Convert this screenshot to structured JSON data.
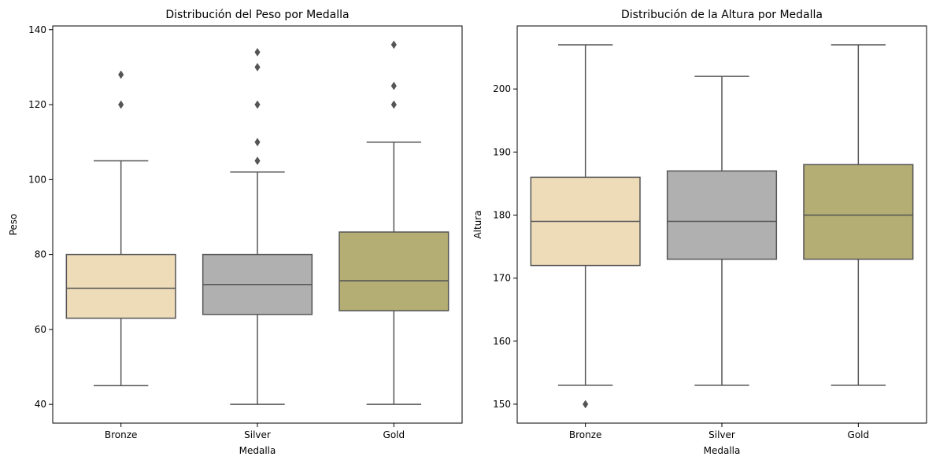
{
  "chart_data": [
    {
      "type": "box",
      "title": "Distribución del Peso por Medalla",
      "xlabel": "Medalla",
      "ylabel": "Peso",
      "ylim": [
        35,
        141
      ],
      "yticks": [
        40,
        60,
        80,
        100,
        120,
        140
      ],
      "grid": false,
      "categories": [
        "Bronze",
        "Silver",
        "Gold"
      ],
      "boxes": [
        {
          "category": "Bronze",
          "whisker_low": 45,
          "q1": 63,
          "median": 71,
          "q3": 80,
          "whisker_high": 105,
          "outliers": [
            120,
            128
          ]
        },
        {
          "category": "Silver",
          "whisker_low": 40,
          "q1": 64,
          "median": 72,
          "q3": 80,
          "whisker_high": 102,
          "outliers": [
            105,
            110,
            120,
            130,
            134
          ]
        },
        {
          "category": "Gold",
          "whisker_low": 40,
          "q1": 65,
          "median": 73,
          "q3": 86,
          "whisker_high": 110,
          "outliers": [
            120,
            125,
            136
          ]
        }
      ]
    },
    {
      "type": "box",
      "title": "Distribución de la Altura por Medalla",
      "xlabel": "Medalla",
      "ylabel": "Altura",
      "ylim": [
        147,
        210
      ],
      "yticks": [
        150,
        160,
        170,
        180,
        190,
        200
      ],
      "grid": false,
      "categories": [
        "Bronze",
        "Silver",
        "Gold"
      ],
      "boxes": [
        {
          "category": "Bronze",
          "whisker_low": 153,
          "q1": 172,
          "median": 179,
          "q3": 186,
          "whisker_high": 207,
          "outliers": [
            150
          ]
        },
        {
          "category": "Silver",
          "whisker_low": 153,
          "q1": 173,
          "median": 179,
          "q3": 187,
          "whisker_high": 202,
          "outliers": []
        },
        {
          "category": "Gold",
          "whisker_low": 153,
          "q1": 173,
          "median": 180,
          "q3": 188,
          "whisker_high": 207,
          "outliers": []
        }
      ]
    }
  ],
  "colors": {
    "Bronze": "#eedcb9",
    "Silver": "#b0b0b0",
    "Gold": "#b4ad74",
    "lines": "#555555",
    "axes": "#000000"
  }
}
